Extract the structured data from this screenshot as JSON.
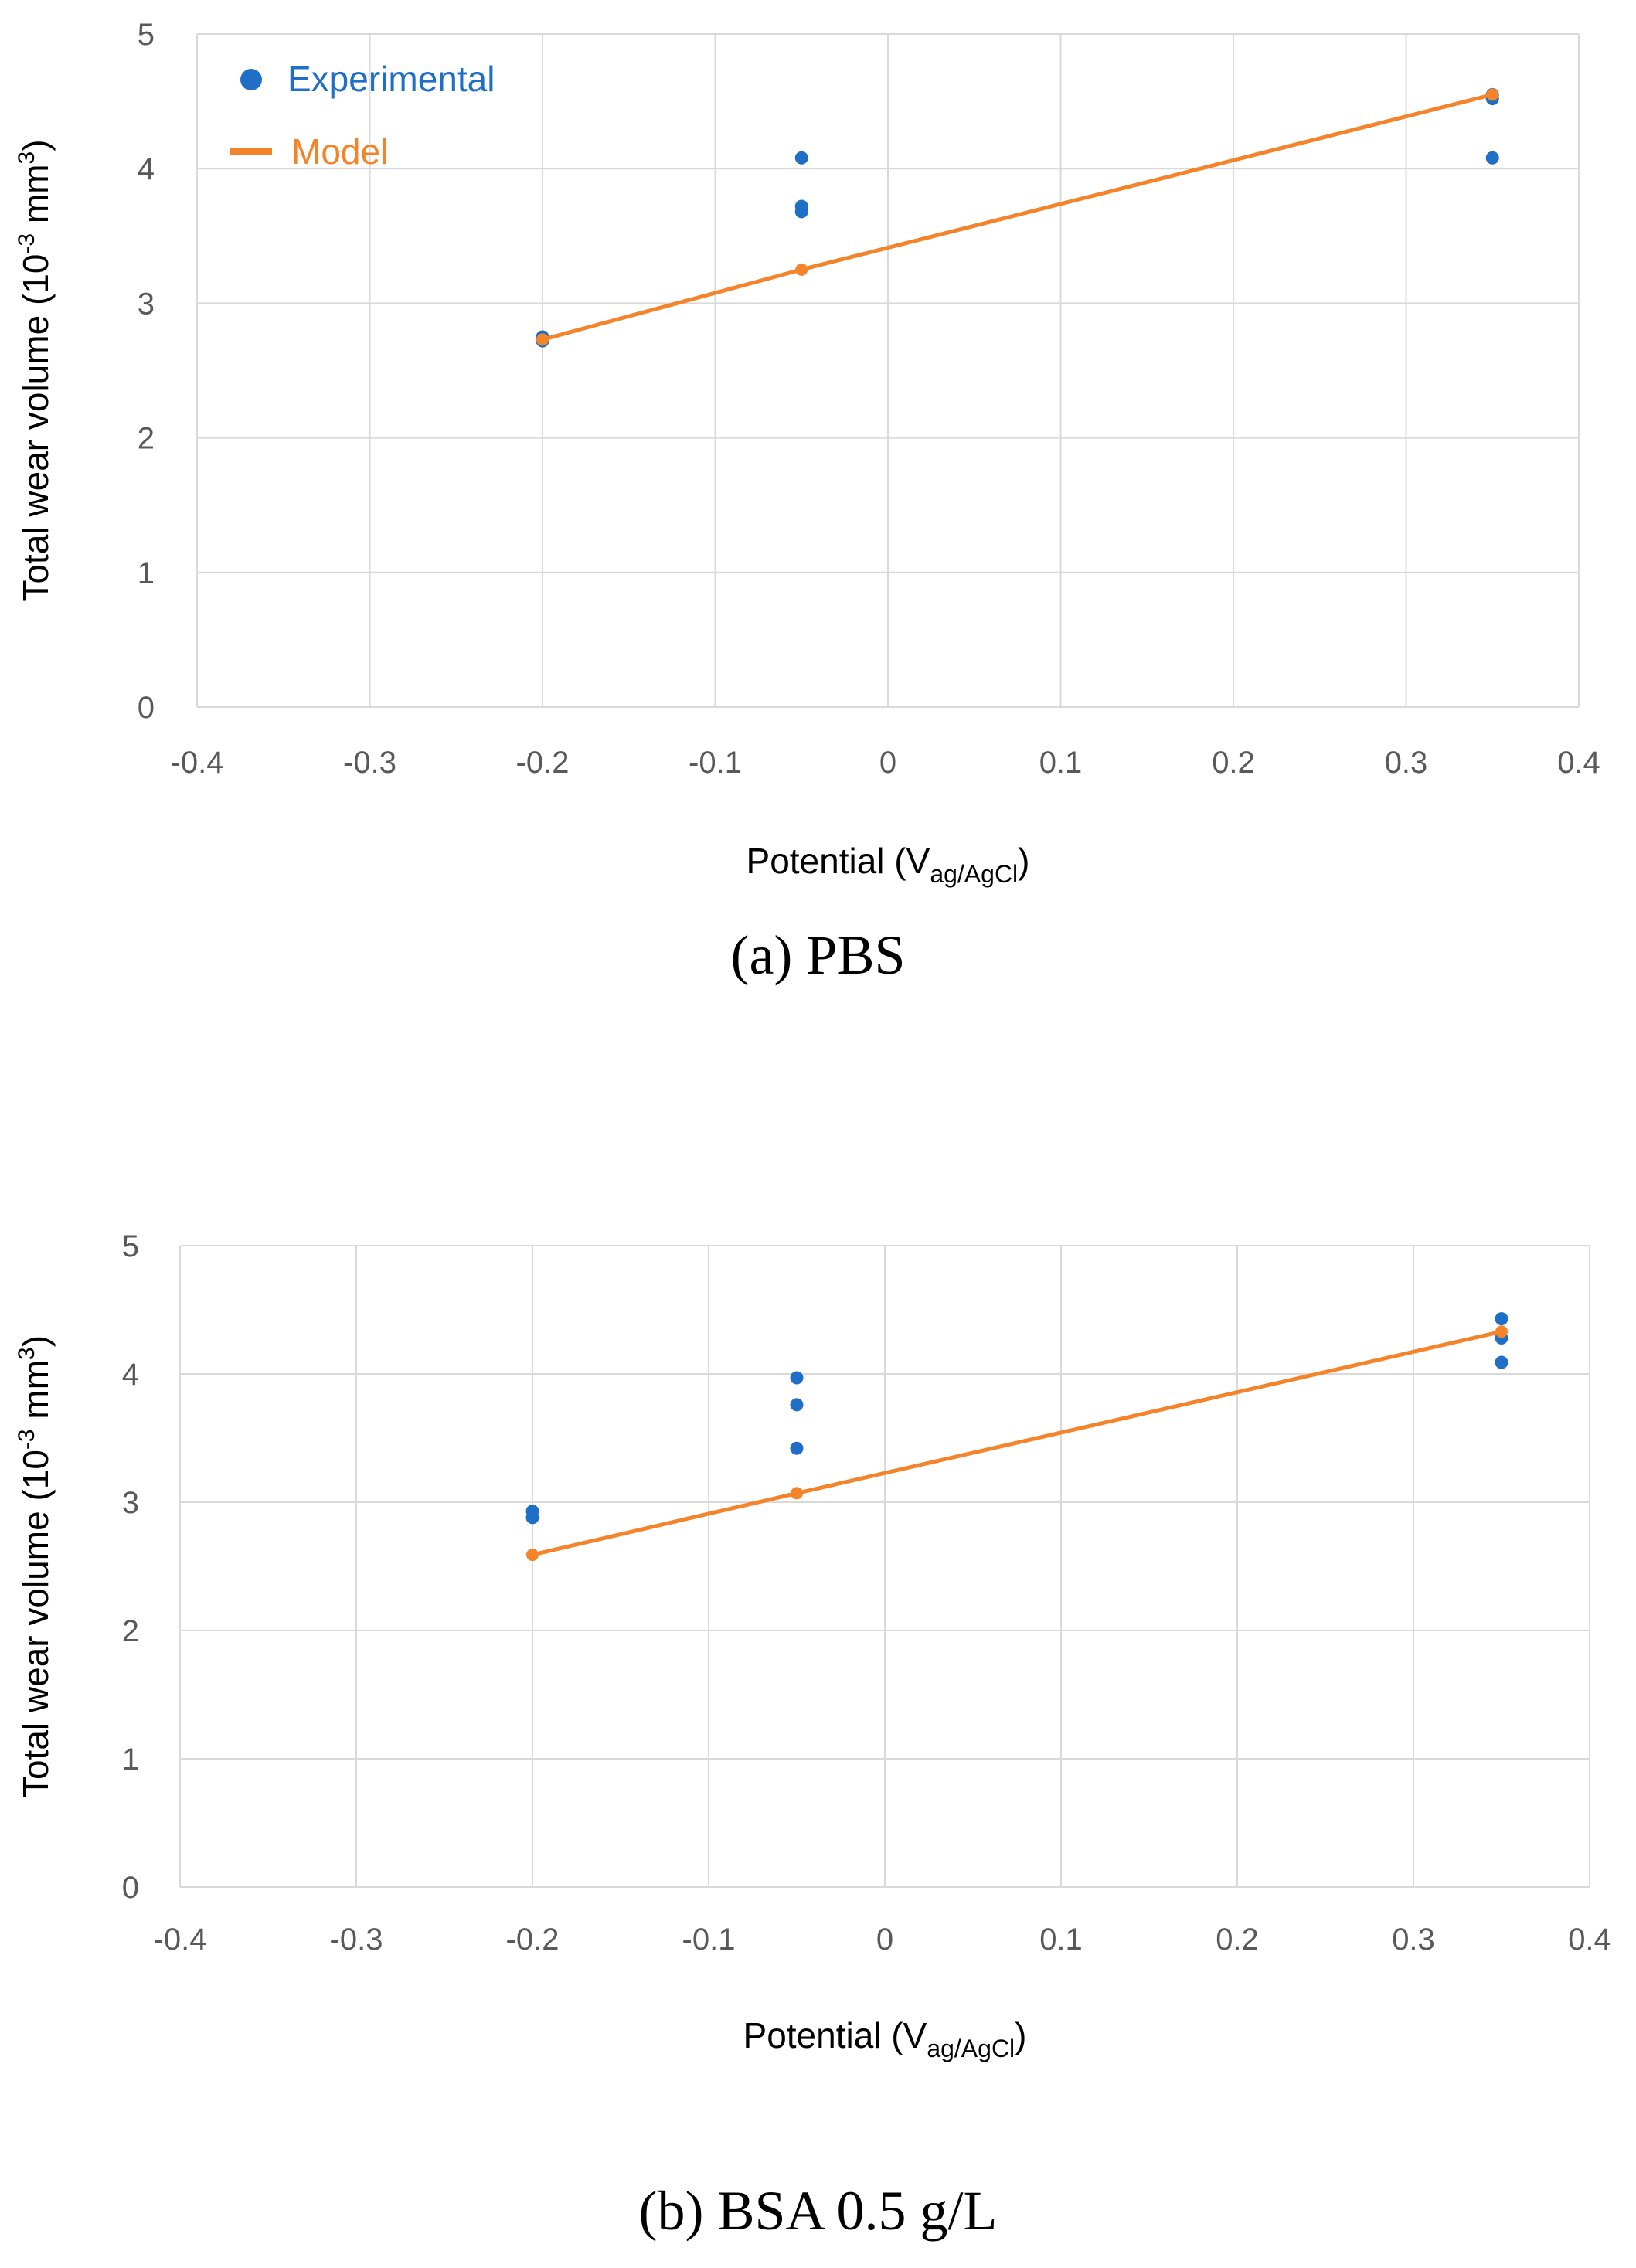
{
  "colors": {
    "experimental": "#1F6FC9",
    "model": "#F5832A",
    "grid": "#D9D9D9",
    "tick": "#595959"
  },
  "chart_data": [
    {
      "id": "a",
      "type": "scatter",
      "caption": "(a) PBS",
      "xlabel": {
        "main": "Potential (V",
        "sub": "ag/AgCl",
        "tail": ")"
      },
      "ylabel": {
        "main": "Total wear volume (10",
        "sup": "-3",
        "mid": " mm",
        "sup2": "3",
        "tail": ")"
      },
      "xlim": [
        -0.4,
        0.4
      ],
      "ylim": [
        0,
        5
      ],
      "xticks": [
        "-0.4",
        "-0.3",
        "-0.2",
        "-0.1",
        "0",
        "0.1",
        "0.2",
        "0.3",
        "0.4"
      ],
      "yticks": [
        "0",
        "1",
        "2",
        "3",
        "4",
        "5"
      ],
      "grid": true,
      "legend": {
        "placement": "top-left",
        "entries": [
          "Experimental",
          "Model"
        ]
      },
      "series": [
        {
          "name": "Experimental",
          "kind": "points",
          "points": [
            [
              -0.2,
              2.72
            ],
            [
              -0.2,
              2.75
            ],
            [
              -0.05,
              4.08
            ],
            [
              -0.05,
              3.68
            ],
            [
              -0.05,
              3.72
            ],
            [
              0.35,
              4.52
            ],
            [
              0.35,
              4.55
            ],
            [
              0.35,
              4.08
            ]
          ]
        },
        {
          "name": "Model",
          "kind": "line",
          "points": [
            [
              -0.2,
              2.73
            ],
            [
              -0.05,
              3.25
            ],
            [
              0.35,
              4.55
            ]
          ]
        }
      ]
    },
    {
      "id": "b",
      "type": "scatter",
      "caption": "(b) BSA 0.5 g/L",
      "xlabel": {
        "main": "Potential (V",
        "sub": "ag/AgCl",
        "tail": ")"
      },
      "ylabel": {
        "main": "Total wear volume (10",
        "sup": "-3",
        "mid": " mm",
        "sup2": "3",
        "tail": ")"
      },
      "xlim": [
        -0.4,
        0.4
      ],
      "ylim": [
        0,
        5
      ],
      "xticks": [
        "-0.4",
        "-0.3",
        "-0.2",
        "-0.1",
        "0",
        "0.1",
        "0.2",
        "0.3",
        "0.4"
      ],
      "yticks": [
        "0",
        "1",
        "2",
        "3",
        "4",
        "5"
      ],
      "grid": true,
      "legend": null,
      "series": [
        {
          "name": "Experimental",
          "kind": "points",
          "points": [
            [
              -0.2,
              2.93
            ],
            [
              -0.2,
              2.88
            ],
            [
              -0.05,
              3.97
            ],
            [
              -0.05,
              3.76
            ],
            [
              -0.05,
              3.42
            ],
            [
              0.35,
              4.43
            ],
            [
              0.35,
              4.28
            ],
            [
              0.35,
              4.09
            ]
          ]
        },
        {
          "name": "Model",
          "kind": "line",
          "points": [
            [
              -0.2,
              2.59
            ],
            [
              -0.05,
              3.07
            ],
            [
              0.35,
              4.33
            ]
          ]
        }
      ]
    }
  ]
}
